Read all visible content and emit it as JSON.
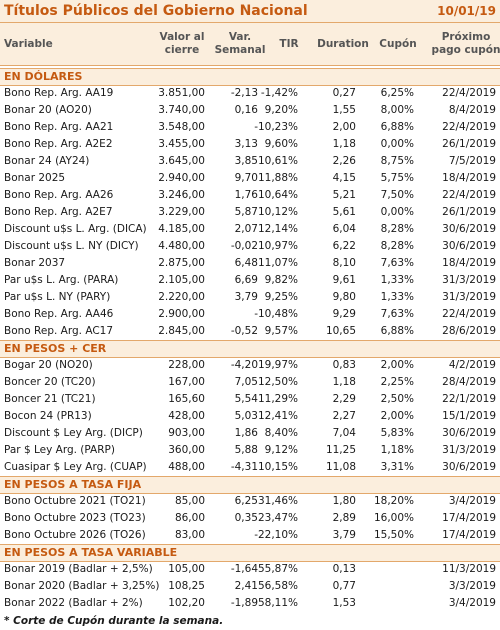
{
  "header": {
    "title": "Títulos Públicos del Gobierno Nacional",
    "date": "10/01/19"
  },
  "columns": [
    [
      "Variable"
    ],
    [
      "Valor al",
      "cierre"
    ],
    [
      "Var.",
      "Semanal"
    ],
    [
      "TIR"
    ],
    [
      "Duration"
    ],
    [
      "Cupón"
    ],
    [
      "Próximo",
      "pago cupón"
    ]
  ],
  "sections": [
    {
      "name": "EN DÓLARES",
      "rows": [
        [
          "Bono Rep. Arg. AA19",
          "3.851,00",
          "-2,13",
          "-1,42%",
          "0,27",
          "6,25%",
          "22/4/2019"
        ],
        [
          "Bonar 20 (AO20)",
          "3.740,00",
          "0,16",
          "9,20%",
          "1,55",
          "8,00%",
          "8/4/2019"
        ],
        [
          "Bono Rep. Arg. AA21",
          "3.548,00",
          "-",
          "10,23%",
          "2,00",
          "6,88%",
          "22/4/2019"
        ],
        [
          "Bono Rep. Arg. A2E2",
          "3.455,00",
          "3,13",
          "9,60%",
          "1,18",
          "0,00%",
          "26/1/2019"
        ],
        [
          "Bonar 24 (AY24)",
          "3.645,00",
          "3,85",
          "10,61%",
          "2,26",
          "8,75%",
          "7/5/2019"
        ],
        [
          "Bonar 2025",
          "2.940,00",
          "9,70",
          "11,88%",
          "4,15",
          "5,75%",
          "18/4/2019"
        ],
        [
          "Bono Rep. Arg. AA26",
          "3.246,00",
          "1,76",
          "10,64%",
          "5,21",
          "7,50%",
          "22/4/2019"
        ],
        [
          "Bono Rep. Arg. A2E7",
          "3.229,00",
          "5,87",
          "10,12%",
          "5,61",
          "0,00%",
          "26/1/2019"
        ],
        [
          "Discount u$s L. Arg. (DICA)",
          "4.185,00",
          "2,07",
          "12,14%",
          "6,04",
          "8,28%",
          "30/6/2019"
        ],
        [
          "Discount u$s L. NY (DICY)",
          "4.480,00",
          "-0,02",
          "10,97%",
          "6,22",
          "8,28%",
          "30/6/2019"
        ],
        [
          "Bonar 2037",
          "2.875,00",
          "6,48",
          "11,07%",
          "8,10",
          "7,63%",
          "18/4/2019"
        ],
        [
          "Par u$s L. Arg. (PARA)",
          "2.105,00",
          "6,69",
          "9,82%",
          "9,61",
          "1,33%",
          "31/3/2019"
        ],
        [
          "Par u$s L. NY (PARY)",
          "2.220,00",
          "3,79",
          "9,25%",
          "9,80",
          "1,33%",
          "31/3/2019"
        ],
        [
          "Bono Rep. Arg. AA46",
          "2.900,00",
          "-",
          "10,48%",
          "9,29",
          "7,63%",
          "22/4/2019"
        ],
        [
          "Bono Rep. Arg. AC17",
          "2.845,00",
          "-0,52",
          "9,57%",
          "10,65",
          "6,88%",
          "28/6/2019"
        ]
      ]
    },
    {
      "name": "EN PESOS + CER",
      "rows": [
        [
          "Bogar 20 (NO20)",
          "228,00",
          "-4,20",
          "19,97%",
          "0,83",
          "2,00%",
          "4/2/2019"
        ],
        [
          "Boncer 20 (TC20)",
          "167,00",
          "7,05",
          "12,50%",
          "1,18",
          "2,25%",
          "28/4/2019"
        ],
        [
          "Boncer 21 (TC21)",
          "165,60",
          "5,54",
          "11,29%",
          "2,29",
          "2,50%",
          "22/1/2019"
        ],
        [
          "Bocon 24 (PR13)",
          "428,00",
          "5,03",
          "12,41%",
          "2,27",
          "2,00%",
          "15/1/2019"
        ],
        [
          "Discount $ Ley Arg. (DICP)",
          "903,00",
          "1,86",
          "8,40%",
          "7,04",
          "5,83%",
          "30/6/2019"
        ],
        [
          "Par $ Ley Arg. (PARP)",
          "360,00",
          "5,88",
          "9,12%",
          "11,25",
          "1,18%",
          "31/3/2019"
        ],
        [
          "Cuasipar $ Ley Arg. (CUAP)",
          "488,00",
          "-4,31",
          "10,15%",
          "11,08",
          "3,31%",
          "30/6/2019"
        ]
      ]
    },
    {
      "name": "EN PESOS A TASA FIJA",
      "rows": [
        [
          "Bono Octubre 2021 (TO21)",
          "85,00",
          "6,25",
          "31,46%",
          "1,80",
          "18,20%",
          "3/4/2019"
        ],
        [
          "Bono Octubre 2023 (TO23)",
          "86,00",
          "0,35",
          "23,47%",
          "2,89",
          "16,00%",
          "17/4/2019"
        ],
        [
          "Bono Octubre 2026 (TO26)",
          "83,00",
          "-",
          "22,10%",
          "3,79",
          "15,50%",
          "17/4/2019"
        ]
      ]
    },
    {
      "name": "EN PESOS A TASA VARIABLE",
      "rows": [
        [
          "Bonar 2019 (Badlar + 2,5%)",
          "105,00",
          "-1,64",
          "55,87%",
          "0,13",
          null,
          "11/3/2019"
        ],
        [
          "Bonar 2020 (Badlar + 3,25%)",
          "108,25",
          "2,41",
          "56,58%",
          "0,77",
          null,
          "3/3/2019"
        ],
        [
          "Bonar 2022 (Badlar + 2%)",
          "102,20",
          "-1,89",
          "58,11%",
          "1,53",
          null,
          "3/4/2019"
        ]
      ]
    }
  ],
  "footnote": "* Corte de Cupón durante la semana."
}
